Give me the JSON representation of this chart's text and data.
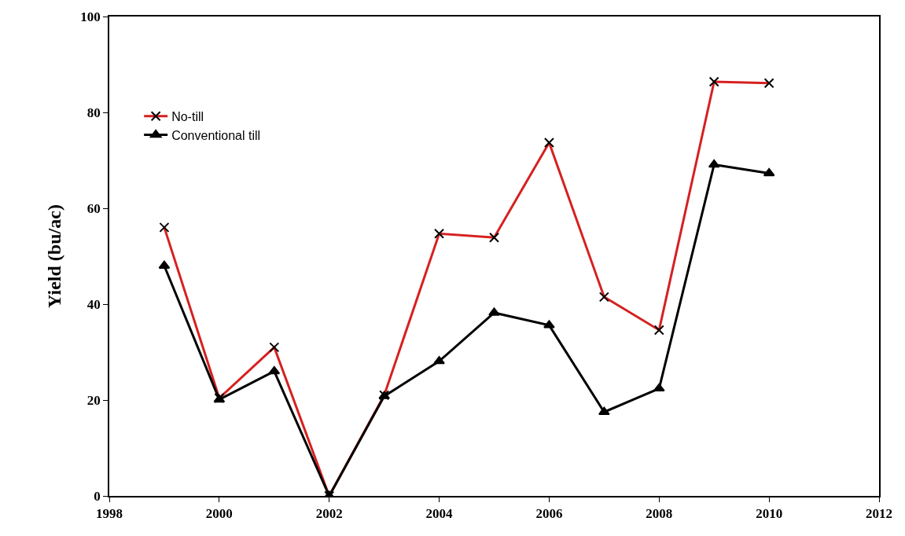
{
  "chart_data": {
    "type": "line",
    "ylabel": "Yield (bu/ac)",
    "x": [
      1999,
      2000,
      2001,
      2002,
      2003,
      2004,
      2005,
      2006,
      2007,
      2008,
      2009,
      2010
    ],
    "series": [
      {
        "name": "No-till",
        "color": "#d62020",
        "marker": "cross",
        "values": [
          56,
          20.4,
          31,
          0,
          21,
          54.7,
          53.9,
          73.7,
          41.5,
          34.6,
          86.4,
          86.1
        ]
      },
      {
        "name": "Conventional till",
        "color": "#000000",
        "marker": "triangle",
        "values": [
          48,
          20.1,
          26,
          0,
          20.8,
          28.1,
          38.2,
          35.6,
          17.5,
          22.4,
          69.1,
          67.3
        ]
      }
    ],
    "xlim": [
      1998,
      2012
    ],
    "xticks": [
      1998,
      2000,
      2002,
      2004,
      2006,
      2008,
      2010,
      2012
    ],
    "ylim": [
      0,
      100
    ],
    "yticks": [
      0,
      20,
      40,
      60,
      80,
      100
    ],
    "legend": "top left",
    "line_style": "solid"
  }
}
